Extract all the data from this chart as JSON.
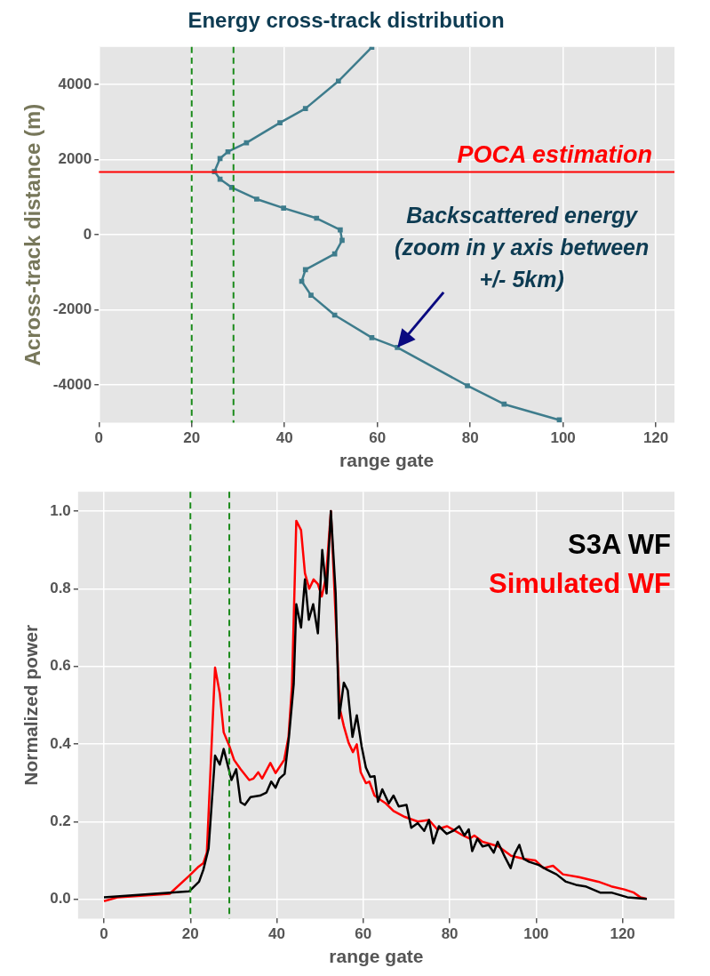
{
  "chart_data": [
    {
      "type": "line",
      "title": "Energy cross-track distribution",
      "xlabel": "range gate",
      "ylabel": "Across-track distance (m)",
      "series": [
        {
          "color": "#3e7c8c",
          "x": [
            58.8,
            51.6,
            44.5,
            39,
            31.8,
            27.8,
            26.1,
            24.9,
            26.1,
            28.6,
            34,
            39.8,
            46.9,
            52,
            52.4,
            50.8,
            44.5,
            43.7,
            45.7,
            50.8,
            58.8,
            64.3,
            79.4,
            87.3,
            99.2
          ],
          "values": [
            4990,
            4090,
            3360,
            2980,
            2450,
            2210,
            2030,
            1680,
            1480,
            1260,
            950,
            710,
            440,
            130,
            -150,
            -510,
            -930,
            -1240,
            -1610,
            -2140,
            -2740,
            -3000,
            -4020,
            -4510,
            -4930
          ]
        }
      ],
      "xlim": [
        0,
        124
      ],
      "xticks": [
        0,
        20,
        40,
        60,
        80,
        100,
        120
      ],
      "ylim": [
        -5000,
        5000
      ],
      "yticks": [
        -4000,
        -2000,
        0,
        2000,
        4000
      ],
      "grid": true,
      "marker": "square",
      "ref_lines": [
        {
          "axis": "x",
          "value": 20,
          "color": "#1a8a1a",
          "line_style": "dashed"
        },
        {
          "axis": "x",
          "value": 29,
          "color": "#1a8a1a",
          "line_style": "dashed"
        },
        {
          "axis": "y",
          "value": 1670,
          "label": "POCA estimation",
          "color": "#ff0000",
          "line_style": "solid"
        }
      ],
      "annotations": [
        {
          "text": "Backscattered energy\n(zoom in y axis between\n+/- 5km)",
          "x": 64.3,
          "y": -3000
        }
      ]
    },
    {
      "type": "line",
      "xlabel": "range gate",
      "ylabel": "Normalized power",
      "series": [
        {
          "name": "S3A WF",
          "color": "#000000",
          "x": [
            0,
            19.7,
            22,
            23,
            24.2,
            25.7,
            26.8,
            27.7,
            29.5,
            30.6,
            31.6,
            32.6,
            33.9,
            36.1,
            37.6,
            38.7,
            39.7,
            40.6,
            41.8,
            42.8,
            43.9,
            44.5,
            45.6,
            46.5,
            47.4,
            48.4,
            49.5,
            50.5,
            51.5,
            52.5,
            53.6,
            54.4,
            55.5,
            56.4,
            57.5,
            58.5,
            59.6,
            60.6,
            61.6,
            62.6,
            63.4,
            64.4,
            65.9,
            67,
            68.2,
            70,
            71.1,
            72.6,
            74.1,
            75.2,
            76.2,
            77.5,
            79.3,
            80.8,
            82.2,
            83.4,
            84.4,
            85.2,
            86.4,
            87.6,
            89,
            90.2,
            91.1,
            92.8,
            94.1,
            95,
            96.1,
            97.1,
            98.4,
            100.6,
            102.5,
            104.7,
            106.9,
            109.2,
            111.4,
            114.8,
            117.4,
            121.1,
            125.6
          ],
          "values": [
            0.005,
            0.02,
            0.045,
            0.076,
            0.13,
            0.37,
            0.347,
            0.387,
            0.307,
            0.335,
            0.25,
            0.243,
            0.263,
            0.267,
            0.275,
            0.303,
            0.287,
            0.311,
            0.323,
            0.418,
            0.554,
            0.76,
            0.7,
            0.824,
            0.72,
            0.76,
            0.685,
            0.9,
            0.788,
            1.0,
            0.79,
            0.466,
            0.558,
            0.538,
            0.418,
            0.474,
            0.395,
            0.339,
            0.315,
            0.317,
            0.251,
            0.283,
            0.247,
            0.267,
            0.239,
            0.243,
            0.184,
            0.196,
            0.176,
            0.204,
            0.144,
            0.188,
            0.168,
            0.176,
            0.188,
            0.164,
            0.18,
            0.124,
            0.156,
            0.136,
            0.14,
            0.12,
            0.148,
            0.108,
            0.08,
            0.116,
            0.14,
            0.104,
            0.096,
            0.088,
            0.076,
            0.064,
            0.045,
            0.037,
            0.033,
            0.017,
            0.017,
            0.005,
            0.001
          ]
        },
        {
          "name": "Simulated WF",
          "color": "#ff0000",
          "x": [
            0,
            3.3,
            15.2,
            19.7,
            21.9,
            23,
            23.8,
            25.7,
            26.8,
            27.7,
            29,
            30.1,
            31.6,
            33.6,
            34.6,
            35.7,
            36.6,
            38.5,
            39.7,
            41.7,
            42.7,
            43.5,
            44.5,
            45.6,
            46.5,
            47.5,
            48.5,
            49.5,
            50.4,
            51.4,
            52.5,
            53.6,
            54.6,
            55.5,
            56.6,
            57.6,
            58.5,
            59.4,
            60.6,
            61.4,
            62.6,
            64.1,
            65.2,
            67,
            69.6,
            72.6,
            75.2,
            77.1,
            79.4,
            83.1,
            84.6,
            85.7,
            87.6,
            91.3,
            94.2,
            97.2,
            99.8,
            101.7,
            103.9,
            106.2,
            109.9,
            114.4,
            117.4,
            120.4,
            122.6,
            124.1,
            125.6
          ],
          "values": [
            -0.005,
            0.005,
            0.014,
            0.06,
            0.084,
            0.093,
            0.12,
            0.597,
            0.53,
            0.43,
            0.395,
            0.359,
            0.335,
            0.307,
            0.311,
            0.327,
            0.311,
            0.351,
            0.325,
            0.359,
            0.418,
            0.55,
            0.975,
            0.951,
            0.84,
            0.8,
            0.824,
            0.812,
            0.78,
            0.832,
            1.0,
            0.729,
            0.49,
            0.446,
            0.403,
            0.379,
            0.399,
            0.327,
            0.299,
            0.303,
            0.267,
            0.255,
            0.247,
            0.227,
            0.212,
            0.2,
            0.204,
            0.18,
            0.188,
            0.164,
            0.156,
            0.164,
            0.148,
            0.136,
            0.112,
            0.104,
            0.1,
            0.08,
            0.086,
            0.064,
            0.057,
            0.045,
            0.033,
            0.025,
            0.017,
            0.005,
            0.001
          ]
        }
      ],
      "xlim": [
        -6,
        132
      ],
      "xticks": [
        0,
        20,
        40,
        60,
        80,
        100,
        120
      ],
      "ylim": [
        -0.05,
        1.05
      ],
      "yticks": [
        {
          "value": 0,
          "label": "0.0"
        },
        {
          "value": 0.2,
          "label": "0.2"
        },
        {
          "value": 0.4,
          "label": "0.4"
        },
        {
          "value": 0.6,
          "label": "0.6"
        },
        {
          "value": 0.8,
          "label": "0.8"
        },
        {
          "value": 1,
          "label": "1.0"
        }
      ],
      "grid": true,
      "legend": "top right",
      "marker": "none",
      "ref_lines": [
        {
          "axis": "x",
          "value": 20,
          "color": "#1a8a1a",
          "line_style": "dashed"
        },
        {
          "axis": "x",
          "value": 29,
          "color": "#1a8a1a",
          "line_style": "dashed"
        }
      ]
    }
  ]
}
